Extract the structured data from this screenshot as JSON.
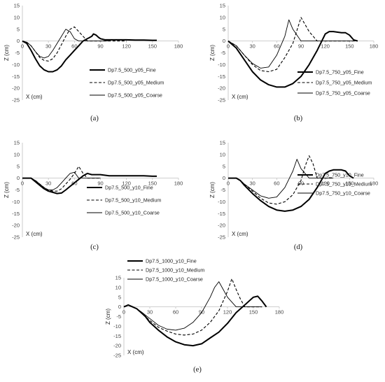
{
  "chart_data": [
    {
      "id": "a",
      "type": "line",
      "panel_label": "(a)",
      "xlabel": "X (cm)",
      "ylabel": "Z (cm)",
      "xlim": [
        0,
        180
      ],
      "ylim": [
        -25,
        15
      ],
      "xticks": [
        0,
        30,
        60,
        90,
        120,
        150,
        180
      ],
      "yticks": [
        15,
        10,
        5,
        0,
        -5,
        -10,
        -15,
        -20,
        -25
      ],
      "legend_position": "right",
      "series": [
        {
          "name": "Dp7.5_500_y05_Fine",
          "style": "thick",
          "x": [
            0,
            5,
            10,
            15,
            20,
            25,
            30,
            35,
            40,
            45,
            50,
            55,
            60,
            65,
            70,
            75,
            80,
            82,
            85,
            88,
            90,
            95,
            100,
            110,
            120,
            130,
            140,
            150,
            155
          ],
          "y": [
            0,
            -1,
            -4,
            -7.5,
            -10.5,
            -12.2,
            -13,
            -13,
            -12.2,
            -10.5,
            -8,
            -6,
            -4,
            -2,
            0,
            1,
            2,
            3,
            2.5,
            1.5,
            1,
            0.5,
            0.5,
            0.5,
            0.5,
            0.4,
            0.4,
            0.3,
            0.3
          ]
        },
        {
          "name": "Dp7.5_500_y05_Medium",
          "style": "dashed",
          "x": [
            0,
            5,
            10,
            15,
            20,
            25,
            30,
            35,
            40,
            45,
            50,
            55,
            60,
            65,
            70,
            75,
            80,
            90,
            100,
            120
          ],
          "y": [
            0,
            -0.5,
            -2,
            -4.5,
            -7,
            -8.2,
            -8.5,
            -7.5,
            -5,
            -1.5,
            2,
            5,
            6,
            4,
            2,
            0,
            0,
            0,
            0,
            0
          ]
        },
        {
          "name": "Dp7.5_500_y05_Coarse",
          "style": "thin",
          "x": [
            0,
            5,
            10,
            15,
            20,
            25,
            30,
            35,
            40,
            45,
            50,
            55,
            60,
            65,
            70,
            75,
            80,
            90,
            100
          ],
          "y": [
            0,
            -0.5,
            -2,
            -4.5,
            -6.5,
            -7.2,
            -6.5,
            -4,
            -1,
            2,
            5,
            4,
            1,
            0,
            0,
            0,
            0,
            0,
            0
          ]
        }
      ]
    },
    {
      "id": "b",
      "type": "line",
      "panel_label": "(b)",
      "xlabel": "X (cm)",
      "ylabel": "Z (cm)",
      "xlim": [
        0,
        180
      ],
      "ylim": [
        -25,
        15
      ],
      "xticks": [
        0,
        30,
        60,
        90,
        120,
        150,
        180
      ],
      "yticks": [
        15,
        10,
        5,
        0,
        -5,
        -10,
        -15,
        -20,
        -25
      ],
      "legend_position": "right",
      "series": [
        {
          "name": "Dp7.5_750_y05_Fine",
          "style": "thick",
          "x": [
            0,
            10,
            20,
            30,
            40,
            50,
            60,
            70,
            80,
            90,
            100,
            110,
            115,
            120,
            125,
            130,
            140,
            145,
            150,
            155,
            160
          ],
          "y": [
            0,
            -3,
            -8,
            -13,
            -16.5,
            -18.5,
            -19.5,
            -19.5,
            -18,
            -15,
            -10,
            -4,
            -0.5,
            3,
            4,
            4,
            3.5,
            3.5,
            2.5,
            0.5,
            0
          ]
        },
        {
          "name": "Dp7.5_750_y05_Medium",
          "style": "dashed",
          "x": [
            0,
            10,
            20,
            30,
            40,
            50,
            60,
            70,
            80,
            90,
            100,
            110,
            120,
            130,
            140,
            160
          ],
          "y": [
            0,
            -2,
            -6,
            -10,
            -12.5,
            -13,
            -12,
            -7,
            -1,
            10,
            4,
            0,
            0,
            0,
            0,
            0
          ]
        },
        {
          "name": "Dp7.5_750_y05_Coarse",
          "style": "thin",
          "x": [
            0,
            10,
            20,
            30,
            40,
            50,
            60,
            70,
            75,
            80,
            90,
            100,
            120,
            140,
            160
          ],
          "y": [
            0,
            -2,
            -6,
            -9.5,
            -11.5,
            -11,
            -6,
            2,
            9,
            5,
            0,
            0,
            0,
            0,
            0
          ]
        }
      ]
    },
    {
      "id": "c",
      "type": "line",
      "panel_label": "(c)",
      "xlabel": "X (cm)",
      "ylabel": "Z (cm)",
      "xlim": [
        0,
        180
      ],
      "ylim": [
        -25,
        15
      ],
      "xticks": [
        0,
        30,
        60,
        90,
        120,
        150,
        180
      ],
      "yticks": [
        15,
        10,
        5,
        0,
        -5,
        -10,
        -15,
        -20,
        -25
      ],
      "legend_position": "right",
      "series": [
        {
          "name": "Dp7.5_500_y10_Fine",
          "style": "thick",
          "x": [
            0,
            5,
            10,
            15,
            20,
            25,
            30,
            35,
            40,
            45,
            50,
            55,
            60,
            65,
            70,
            75,
            80,
            90,
            100,
            110,
            120,
            130,
            140,
            150,
            155
          ],
          "y": [
            0,
            0,
            0,
            -1.5,
            -3,
            -4.5,
            -5.5,
            -6,
            -6.5,
            -6.3,
            -5,
            -3.5,
            -2,
            -0.5,
            1,
            2,
            1.5,
            1.5,
            1,
            1,
            1,
            1,
            1,
            0.8,
            0.8
          ]
        },
        {
          "name": "Dp7.5_500_y10_Medium",
          "style": "dashed",
          "x": [
            0,
            5,
            10,
            15,
            20,
            25,
            30,
            35,
            40,
            45,
            50,
            55,
            60,
            65,
            70,
            75,
            80,
            90
          ],
          "y": [
            0,
            0,
            0,
            -1,
            -2.5,
            -4,
            -5,
            -5.5,
            -5.5,
            -4.5,
            -2.5,
            -0.5,
            2,
            5,
            2,
            0,
            0,
            0
          ]
        },
        {
          "name": "Dp7.5_500_y10_Coarse",
          "style": "thin",
          "x": [
            0,
            5,
            10,
            15,
            20,
            25,
            30,
            35,
            40,
            45,
            50,
            55,
            60,
            65,
            70,
            80,
            90
          ],
          "y": [
            0,
            0,
            0,
            -1,
            -2.5,
            -4,
            -5,
            -5,
            -4,
            -2,
            0,
            2,
            2.5,
            0,
            0,
            0,
            0
          ]
        }
      ]
    },
    {
      "id": "d",
      "type": "line",
      "panel_label": "(d)",
      "xlabel": "X (cm)",
      "ylabel": "Z (cm)",
      "xlim": [
        0,
        180
      ],
      "ylim": [
        -25,
        15
      ],
      "xticks": [
        0,
        30,
        60,
        90,
        120,
        150,
        180
      ],
      "yticks": [
        15,
        10,
        5,
        0,
        -5,
        -10,
        -15,
        -20,
        -25
      ],
      "legend_position": "bottom-right",
      "series": [
        {
          "name": "Dp7.5_750_y10_Fine",
          "style": "thick",
          "x": [
            0,
            5,
            10,
            15,
            20,
            30,
            40,
            50,
            60,
            70,
            80,
            90,
            100,
            110,
            115,
            120,
            125,
            130,
            140,
            145,
            150,
            155
          ],
          "y": [
            0,
            0,
            0,
            -1,
            -3,
            -6.5,
            -9.5,
            -12,
            -13.5,
            -14,
            -13.5,
            -12,
            -9,
            -4,
            -1,
            2,
            3,
            3.5,
            3.5,
            3,
            1,
            0
          ]
        },
        {
          "name": "Dp7.5_750_y10_Medium",
          "style": "dashed",
          "x": [
            0,
            10,
            15,
            20,
            30,
            40,
            50,
            60,
            70,
            80,
            90,
            95,
            100,
            105,
            110,
            120,
            130
          ],
          "y": [
            0,
            0,
            -1,
            -2.5,
            -5.5,
            -8.5,
            -10.5,
            -11,
            -10,
            -7,
            -1,
            5,
            9.5,
            6,
            0,
            0,
            0
          ]
        },
        {
          "name": "Dp7.5_750_y10_Coarse",
          "style": "thin",
          "x": [
            0,
            10,
            15,
            20,
            30,
            40,
            50,
            60,
            70,
            80,
            85,
            90,
            100,
            110,
            130
          ],
          "y": [
            0,
            0,
            -1,
            -2.5,
            -5,
            -7.5,
            -8.5,
            -8,
            -4,
            3,
            8,
            4,
            0,
            0,
            0
          ]
        }
      ]
    },
    {
      "id": "e",
      "type": "line",
      "panel_label": "(e)",
      "xlabel": "X (cm)",
      "ylabel": "Z (cm)",
      "xlim": [
        0,
        180
      ],
      "ylim": [
        -25,
        15
      ],
      "xticks": [
        0,
        30,
        60,
        90,
        120,
        150,
        180
      ],
      "yticks": [
        15,
        10,
        5,
        0,
        -5,
        -10,
        -15,
        -20,
        -25
      ],
      "legend_position": "top-left",
      "series": [
        {
          "name": "Dp7.5_1000_y10_Fine",
          "style": "thick",
          "x": [
            0,
            5,
            10,
            15,
            20,
            25,
            30,
            40,
            50,
            60,
            70,
            80,
            90,
            100,
            110,
            120,
            130,
            140,
            145,
            150,
            155,
            160,
            165
          ],
          "y": [
            0,
            1,
            0,
            -1,
            -3,
            -5,
            -8,
            -12,
            -15.5,
            -18,
            -19.5,
            -20,
            -19,
            -16,
            -13,
            -8.5,
            -3,
            1,
            3,
            5,
            5.5,
            3,
            0
          ]
        },
        {
          "name": "Dp7.5_1000_y10_Medium",
          "style": "dashed",
          "x": [
            0,
            5,
            10,
            15,
            20,
            30,
            40,
            50,
            60,
            70,
            80,
            90,
            100,
            110,
            120,
            125,
            130,
            135,
            140,
            160
          ],
          "y": [
            0,
            1,
            0,
            -1,
            -3,
            -7,
            -10.5,
            -12.5,
            -14,
            -14.5,
            -14,
            -12,
            -8,
            -2,
            8,
            14.5,
            9,
            4,
            0,
            0
          ]
        },
        {
          "name": "Dp7.5_1000_y10_Coarse",
          "style": "thin",
          "x": [
            0,
            5,
            10,
            15,
            20,
            30,
            40,
            50,
            60,
            70,
            80,
            90,
            100,
            105,
            110,
            115,
            120,
            130,
            150,
            160
          ],
          "y": [
            0,
            1,
            0,
            -1,
            -2.5,
            -6,
            -9.5,
            -11.5,
            -12,
            -11,
            -8,
            -3,
            5,
            10,
            13,
            9,
            5,
            0,
            0,
            0
          ]
        }
      ]
    }
  ]
}
